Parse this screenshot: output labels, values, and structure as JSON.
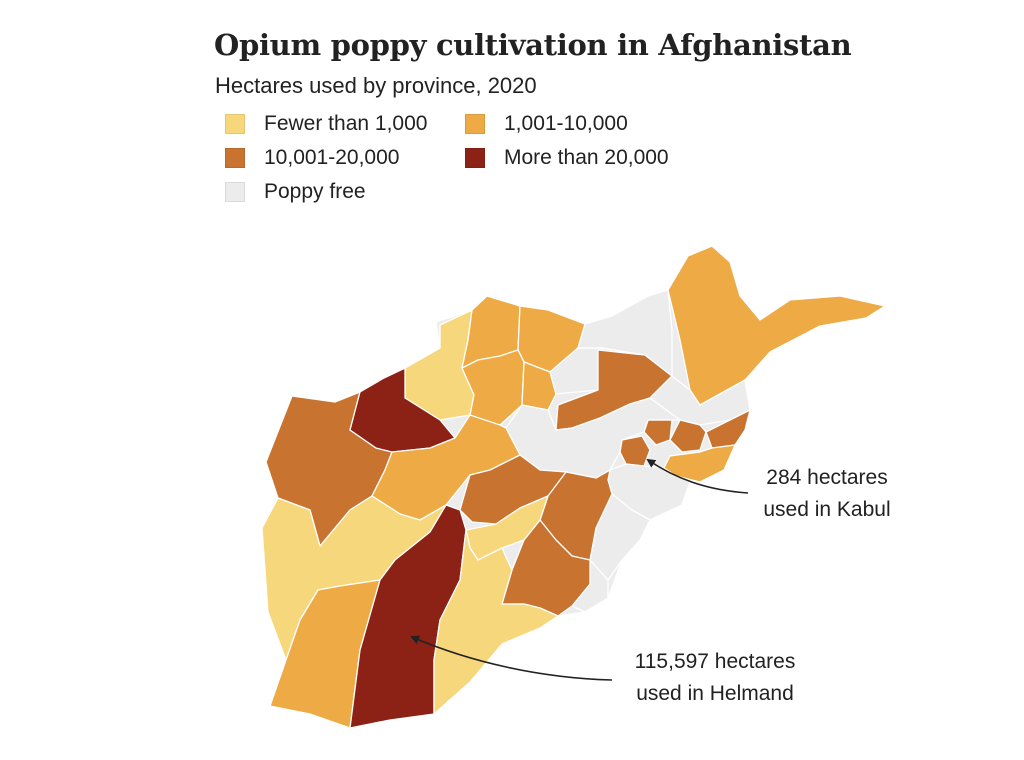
{
  "title": "Opium poppy cultivation in Afghanistan",
  "subtitle": "Hectares used by province, 2020",
  "legend": [
    {
      "label": "Fewer than 1,000",
      "color": "#f7d77c"
    },
    {
      "label": "1,001-10,000",
      "color": "#eeaa44"
    },
    {
      "label": "10,001-20,000",
      "color": "#c87430"
    },
    {
      "label": "More than 20,000",
      "color": "#8c2215"
    },
    {
      "label": "Poppy free",
      "color": "#ececec"
    }
  ],
  "annotations": {
    "kabul": {
      "line1": "284 hectares",
      "line2": "used in Kabul",
      "hectares": 284
    },
    "helmand": {
      "line1": "115,597 hectares",
      "line2": "used in Helmand",
      "hectares": 115597
    }
  },
  "map": {
    "country": "Afghanistan",
    "year": 2020
  }
}
